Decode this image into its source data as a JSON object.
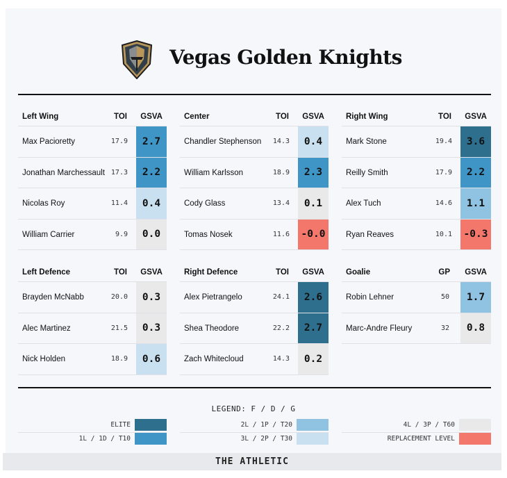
{
  "team": "Vegas Golden Knights",
  "colors": {
    "elite": "#2e6f8e",
    "tier1": "#3f96c6",
    "tier2": "#90c2e2",
    "tier3": "#c8e0ef",
    "tier4": "#e9e9e9",
    "replacement": "#f4776c"
  },
  "groups": [
    {
      "position": "Left Wing",
      "stat_label": "TOI",
      "gsva_label": "GSVA",
      "players": [
        {
          "name": "Max Pacioretty",
          "stat": "17.9",
          "gsva": "2.7",
          "tier": "tier1"
        },
        {
          "name": "Jonathan Marchessault",
          "stat": "17.3",
          "gsva": "2.2",
          "tier": "tier1"
        },
        {
          "name": "Nicolas Roy",
          "stat": "11.4",
          "gsva": "0.4",
          "tier": "tier3"
        },
        {
          "name": "William Carrier",
          "stat": "9.9",
          "gsva": "0.0",
          "tier": "tier4"
        }
      ]
    },
    {
      "position": "Center",
      "stat_label": "TOI",
      "gsva_label": "GSVA",
      "players": [
        {
          "name": "Chandler Stephenson",
          "stat": "14.3",
          "gsva": "0.4",
          "tier": "tier3"
        },
        {
          "name": "William Karlsson",
          "stat": "18.9",
          "gsva": "2.3",
          "tier": "tier1"
        },
        {
          "name": "Cody Glass",
          "stat": "13.4",
          "gsva": "0.1",
          "tier": "tier4"
        },
        {
          "name": "Tomas Nosek",
          "stat": "11.6",
          "gsva": "-0.0",
          "tier": "replacement"
        }
      ]
    },
    {
      "position": "Right Wing",
      "stat_label": "TOI",
      "gsva_label": "GSVA",
      "players": [
        {
          "name": "Mark Stone",
          "stat": "19.4",
          "gsva": "3.6",
          "tier": "elite"
        },
        {
          "name": "Reilly Smith",
          "stat": "17.9",
          "gsva": "2.2",
          "tier": "tier1"
        },
        {
          "name": "Alex Tuch",
          "stat": "14.6",
          "gsva": "1.1",
          "tier": "tier2"
        },
        {
          "name": "Ryan Reaves",
          "stat": "10.1",
          "gsva": "-0.3",
          "tier": "replacement"
        }
      ]
    },
    {
      "position": "Left Defence",
      "stat_label": "TOI",
      "gsva_label": "GSVA",
      "players": [
        {
          "name": "Brayden McNabb",
          "stat": "20.0",
          "gsva": "0.3",
          "tier": "tier4"
        },
        {
          "name": "Alec Martinez",
          "stat": "21.5",
          "gsva": "0.3",
          "tier": "tier4"
        },
        {
          "name": "Nick Holden",
          "stat": "18.9",
          "gsva": "0.6",
          "tier": "tier3"
        }
      ]
    },
    {
      "position": "Right Defence",
      "stat_label": "TOI",
      "gsva_label": "GSVA",
      "players": [
        {
          "name": "Alex Pietrangelo",
          "stat": "24.1",
          "gsva": "2.6",
          "tier": "elite"
        },
        {
          "name": "Shea Theodore",
          "stat": "22.2",
          "gsva": "2.7",
          "tier": "elite"
        },
        {
          "name": "Zach Whitecloud",
          "stat": "14.3",
          "gsva": "0.2",
          "tier": "tier4"
        }
      ]
    },
    {
      "position": "Goalie",
      "stat_label": "GP",
      "gsva_label": "GSVA",
      "players": [
        {
          "name": "Robin Lehner",
          "stat": "50",
          "gsva": "1.7",
          "tier": "tier2"
        },
        {
          "name": "Marc-Andre Fleury",
          "stat": "32",
          "gsva": "0.8",
          "tier": "tier4"
        }
      ]
    }
  ],
  "legend": {
    "title": "LEGEND: F / D / G",
    "items": [
      {
        "label": "ELITE",
        "tier": "elite"
      },
      {
        "label": "1L / 1D / T10",
        "tier": "tier1"
      },
      {
        "label": "2L / 1P / T20",
        "tier": "tier2"
      },
      {
        "label": "3L / 2P / T30",
        "tier": "tier3"
      },
      {
        "label": "4L / 3P / T60",
        "tier": "tier4"
      },
      {
        "label": "REPLACEMENT LEVEL",
        "tier": "replacement"
      }
    ]
  },
  "footer": {
    "brand": "THE ATHLETIC"
  }
}
